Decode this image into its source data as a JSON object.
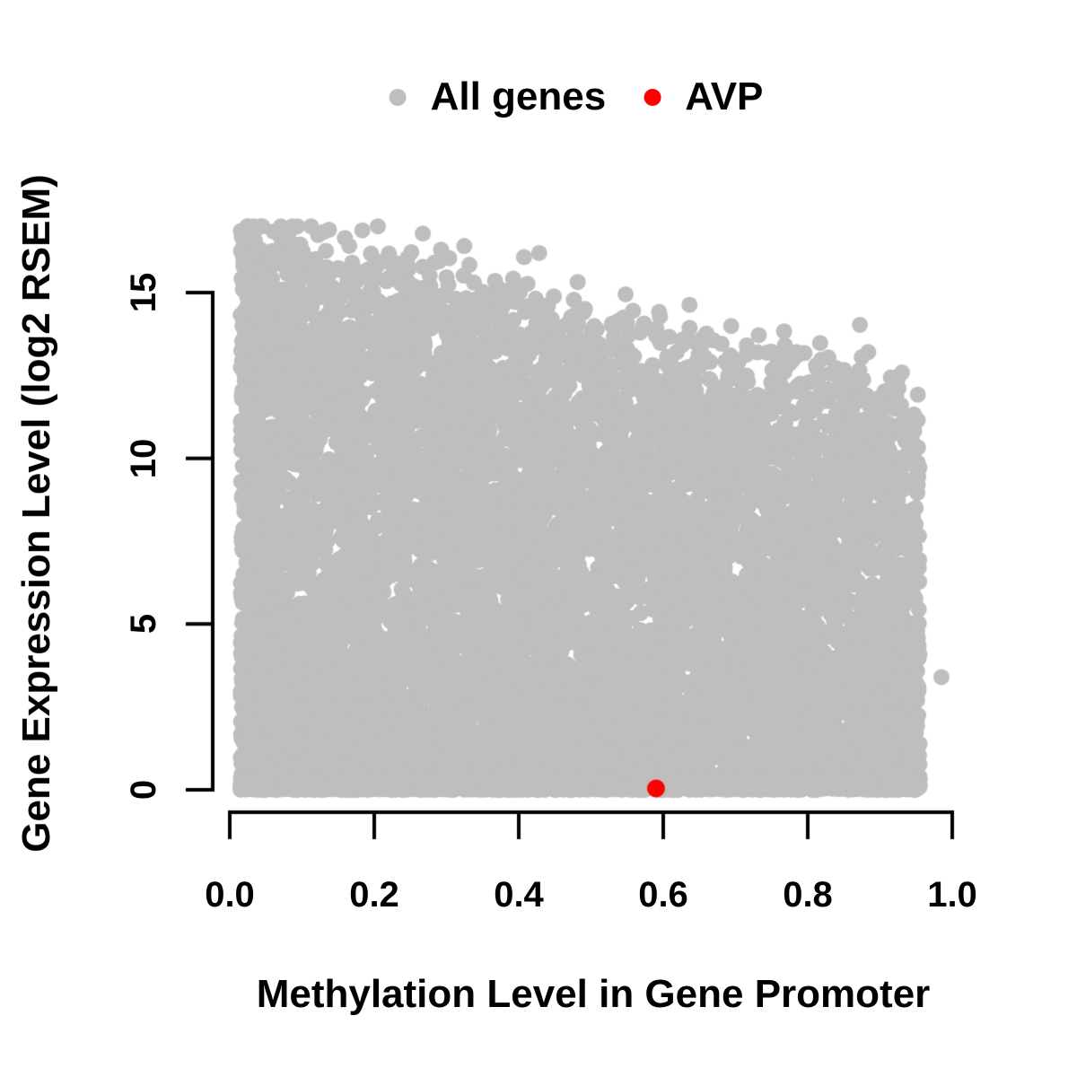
{
  "legend": {
    "items": [
      {
        "label": "All genes",
        "color": "#bebebe"
      },
      {
        "label": "AVP",
        "color": "#ff0000"
      }
    ]
  },
  "chart_data": {
    "type": "scatter",
    "title": "",
    "xlabel": "Methylation Level in Gene Promoter",
    "ylabel": "Gene Expression Level (log2 RSEM)",
    "xlim": [
      0,
      1
    ],
    "ylim": [
      0,
      15
    ],
    "x_ticks": [
      0,
      0.2,
      0.4,
      0.6,
      0.8,
      1.0
    ],
    "x_tick_labels": [
      "0.0",
      "0.2",
      "0.4",
      "0.6",
      "0.8",
      "1.0"
    ],
    "y_ticks": [
      0,
      5,
      10,
      15
    ],
    "y_tick_labels": [
      "0",
      "5",
      "10",
      "15"
    ],
    "grid": false,
    "legend_position": "top-center",
    "background_color": "#ffffff",
    "axis_color": "#000000",
    "text_color": "#000000",
    "series": [
      {
        "name": "All genes",
        "color": "#bebebe",
        "marker": "filled-circle",
        "marker_radius_px": 9,
        "n_points": 12000,
        "seed": 424242,
        "x_min": 0.015,
        "x_max": 0.955,
        "x_power": 1.12,
        "upper_envelope_intercept": 16.9,
        "upper_envelope_slope": -5.5,
        "envelope_noise_sd": 0.7,
        "y_power": 1.35,
        "zero_fraction": 0.25,
        "zero_band_max": 0.35,
        "y_cap": 17,
        "extra_points": [
          [
            0.985,
            3.4
          ]
        ],
        "description": "Dense cloud of ~12000 genes; expression spans 0 to an upper envelope that declines from ~16.9 at methylation 0 to ~11.5 at methylation 0.95; heavy solid band of zero-expression genes across all methylation levels"
      },
      {
        "name": "AVP",
        "color": "#ff0000",
        "marker": "filled-circle",
        "marker_radius_px": 10,
        "points": [
          [
            0.59,
            0.04
          ]
        ]
      }
    ]
  }
}
